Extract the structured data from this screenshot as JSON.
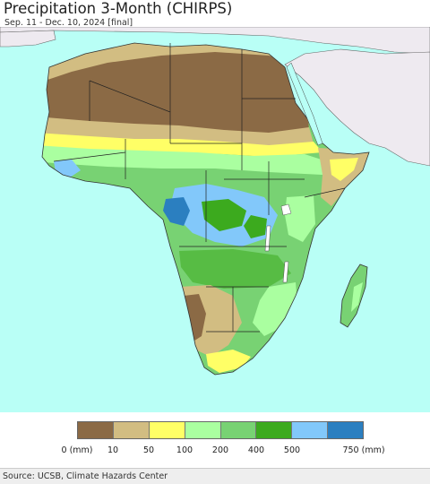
{
  "header": {
    "title": "Precipitation 3-Month (CHIRPS)",
    "subtitle": "Sep. 11 - Dec. 10, 2024 [final]"
  },
  "map": {
    "ocean_color": "#b9fff6",
    "non_africa_land_color": "#eeeaf0"
  },
  "legend": {
    "colors": [
      "#8b6a45",
      "#d2bd82",
      "#ffff66",
      "#aaffa0",
      "#78d273",
      "#3caa1e",
      "#82c8fa",
      "#2b7fc0"
    ],
    "tick_labels": [
      "0 (mm)",
      "10",
      "50",
      "100",
      "200",
      "400",
      "500",
      "750 (mm)"
    ]
  },
  "footer": {
    "source": "Source: UCSB, Climate Hazards Center"
  }
}
